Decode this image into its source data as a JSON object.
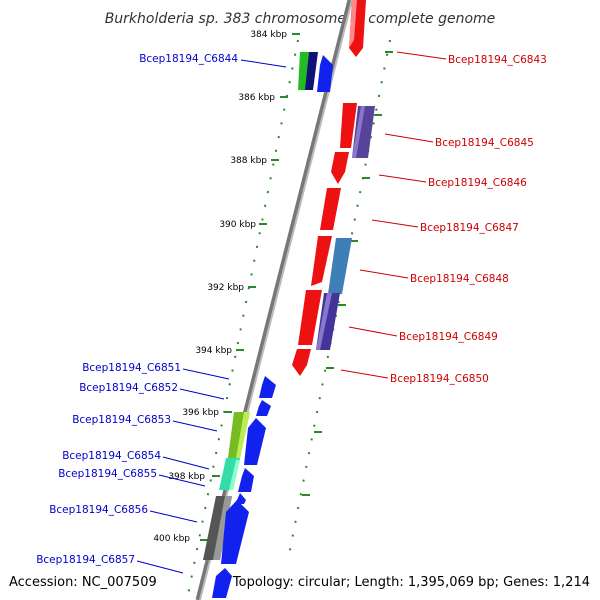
{
  "title": "Burkholderia sp. 383 chromosome 3, complete genome",
  "footer": {
    "accession": "Accession: NC_007509",
    "topology": "Topology: circular; Length: 1,395,069 bp; Genes: 1,214"
  },
  "colors": {
    "forward_label": "#cc0000",
    "reverse_label": "#0000cc",
    "tick": "#2a8a2a",
    "backbone": "#888888"
  },
  "ticks": [
    "384 kbp",
    "386 kbp",
    "388 kbp",
    "390 kbp",
    "392 kbp",
    "394 kbp",
    "396 kbp",
    "398 kbp",
    "400 kbp"
  ],
  "forward_labels": [
    "Bcep18194_C6843",
    "Bcep18194_C6845",
    "Bcep18194_C6846",
    "Bcep18194_C6847",
    "Bcep18194_C6848",
    "Bcep18194_C6849",
    "Bcep18194_C6850"
  ],
  "reverse_labels": [
    "Bcep18194_C6844",
    "Bcep18194_C6851",
    "Bcep18194_C6852",
    "Bcep18194_C6853",
    "Bcep18194_C6854",
    "Bcep18194_C6855",
    "Bcep18194_C6856",
    "Bcep18194_C6857"
  ]
}
